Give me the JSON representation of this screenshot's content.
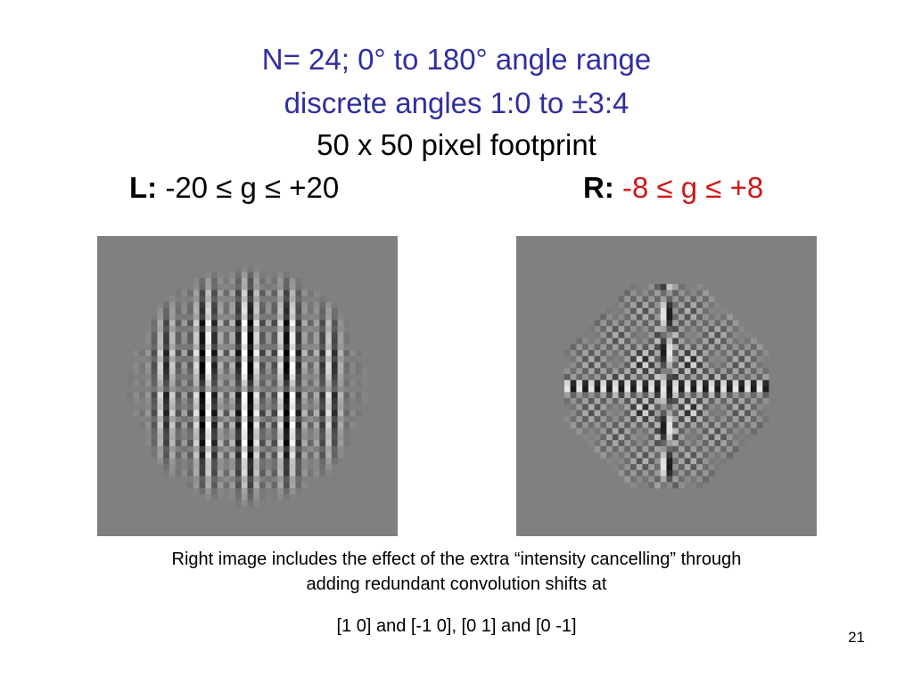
{
  "title": {
    "line1": "N= 24; 0° to 180° angle range",
    "line2": "discrete angles 1:0 to ±3:4",
    "line3": "50 x 50 pixel footprint"
  },
  "left_label": {
    "prefix": "L:",
    "range": "-20 ≤ g ≤ +20"
  },
  "right_label": {
    "prefix": "R:",
    "range": "-8 ≤ g ≤ +8"
  },
  "caption": {
    "line1": "Right image includes the effect of the extra “intensity cancelling” through",
    "line2": "adding redundant convolution shifts at",
    "line3": "[1 0] and [-1 0], [0 1] and [0 -1]"
  },
  "page_number": "21",
  "colors": {
    "title_blue": "#2f2fa0",
    "range_red": "#d01818",
    "panel_gray": "#808080"
  }
}
